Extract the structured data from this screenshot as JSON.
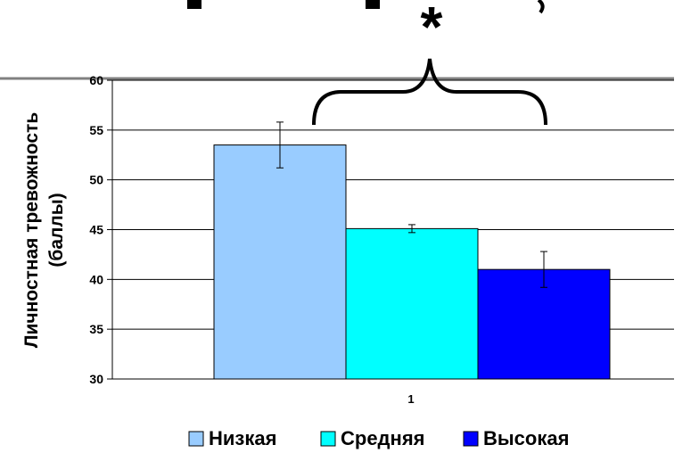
{
  "chart_data": {
    "type": "bar",
    "categories": [
      "1"
    ],
    "ylabel": "Личностная тревожность (баллы)",
    "ylim": [
      30,
      60
    ],
    "yticks": [
      30,
      35,
      40,
      45,
      50,
      55,
      60
    ],
    "grid": true,
    "legend_position": "bottom",
    "series": [
      {
        "name": "Низкая",
        "values": [
          53.5
        ],
        "error": [
          2.3
        ],
        "color": "#99ccff"
      },
      {
        "name": "Средняя",
        "values": [
          45.1
        ],
        "error": [
          0.4
        ],
        "color": "#00ffff"
      },
      {
        "name": "Высокая",
        "values": [
          41.0
        ],
        "error": [
          1.8
        ],
        "color": "#0000ff"
      }
    ],
    "annotations": [
      {
        "text": "*",
        "type": "significance-marker"
      }
    ]
  },
  "colors": {
    "gridline": "#000000",
    "bar_stroke": "#000000",
    "slide_rule": "#808080"
  }
}
